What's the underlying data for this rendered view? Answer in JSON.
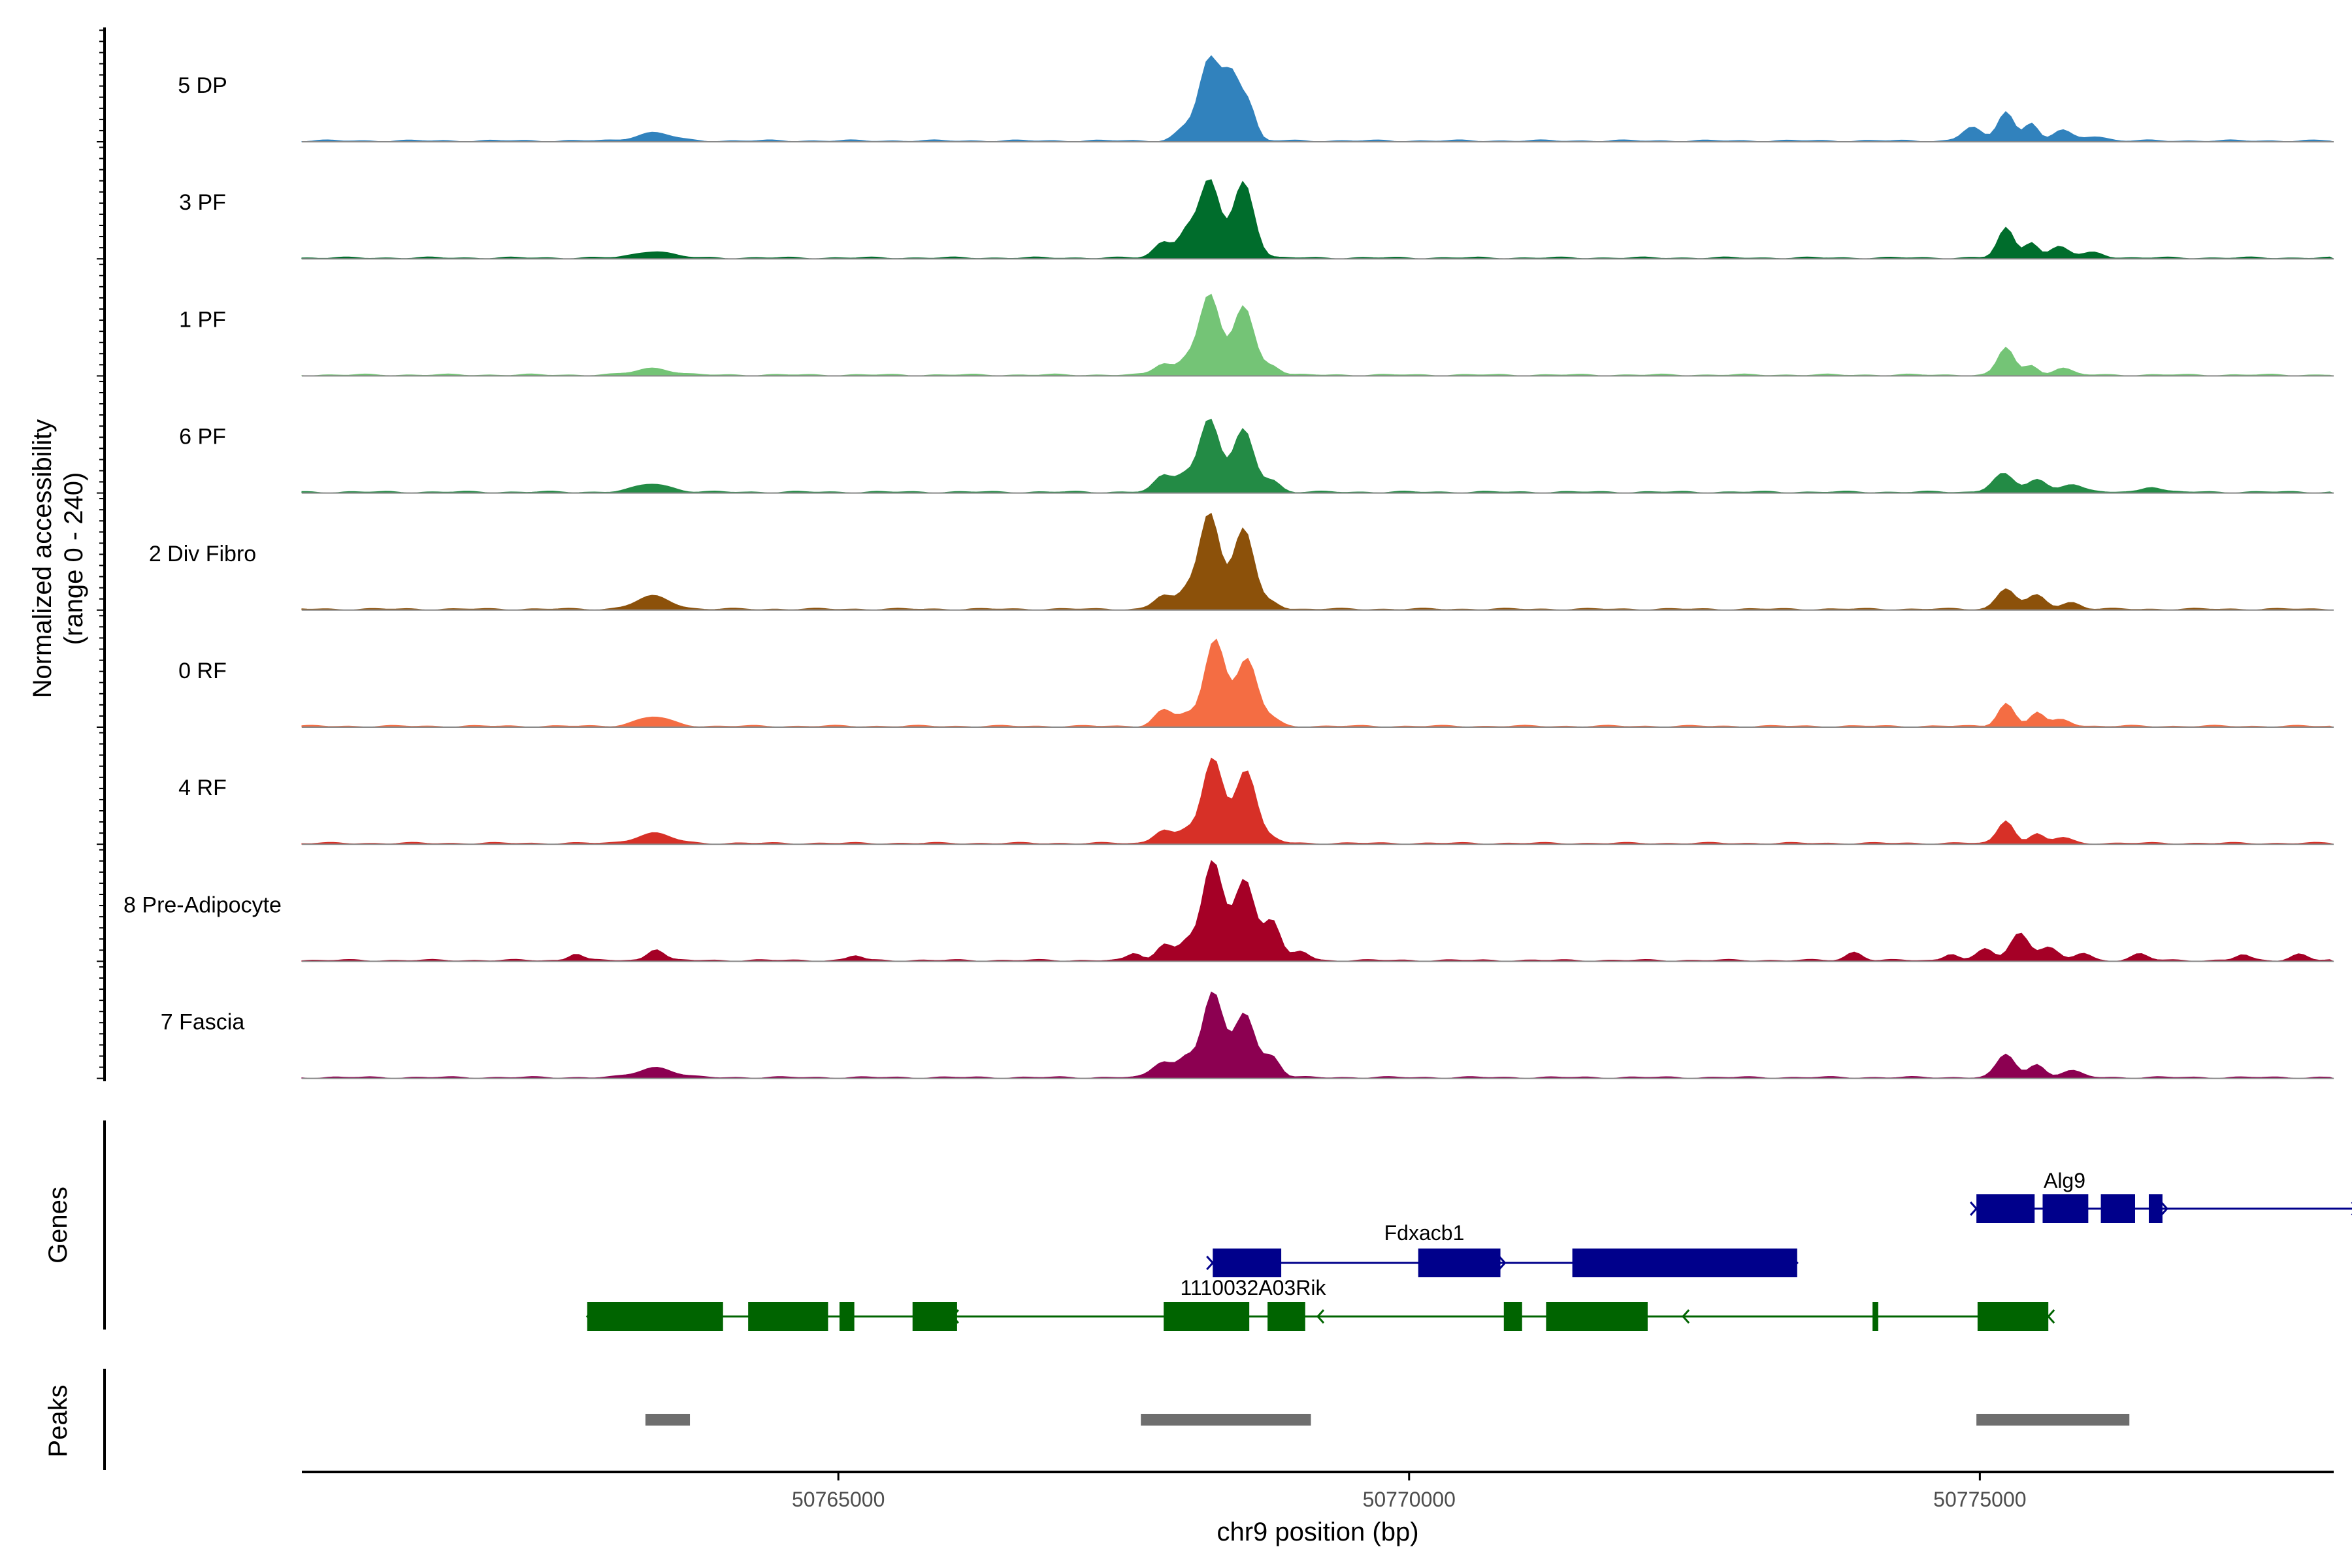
{
  "chart_data": {
    "type": "area",
    "title": "",
    "xlabel": "chr9 position (bp)",
    "ylabel_line1": "Normalized accessibility",
    "ylabel_line2": "(range 0 - 240)",
    "xlim": [
      50760300,
      50778100
    ],
    "xticks": [
      50765000,
      50770000,
      50775000
    ],
    "xtick_labels": [
      "50765000",
      "50770000",
      "50775000"
    ],
    "yrange": [
      0,
      240
    ],
    "tracks": [
      {
        "label": "5 DP",
        "color": "#3182bd",
        "peaks": [
          [
            50763380,
            150,
            18
          ],
          [
            50768030,
            80,
            25
          ],
          [
            50768250,
            90,
            175
          ],
          [
            50768450,
            80,
            140
          ],
          [
            50768600,
            60,
            65
          ],
          [
            50774930,
            80,
            30
          ],
          [
            50775230,
            70,
            65
          ],
          [
            50775450,
            60,
            38
          ],
          [
            50775720,
            80,
            22
          ],
          [
            50776000,
            100,
            10
          ]
        ]
      },
      {
        "label": "3 PF",
        "color": "#006d2c",
        "peaks": [
          [
            50763380,
            150,
            15
          ],
          [
            50767850,
            80,
            35
          ],
          [
            50768050,
            70,
            55
          ],
          [
            50768250,
            90,
            170
          ],
          [
            50768550,
            90,
            165
          ],
          [
            50775230,
            70,
            65
          ],
          [
            50775450,
            60,
            35
          ],
          [
            50775700,
            80,
            25
          ],
          [
            50776000,
            90,
            12
          ]
        ]
      },
      {
        "label": "1 PF",
        "color": "#74c476",
        "peaks": [
          [
            50763380,
            150,
            15
          ],
          [
            50767850,
            80,
            25
          ],
          [
            50768050,
            70,
            30
          ],
          [
            50768250,
            90,
            175
          ],
          [
            50768550,
            90,
            150
          ],
          [
            50768800,
            70,
            20
          ],
          [
            50775230,
            70,
            60
          ],
          [
            50775450,
            60,
            20
          ],
          [
            50775720,
            80,
            15
          ]
        ]
      },
      {
        "label": "6 PF",
        "color": "#238b45",
        "peaks": [
          [
            50763380,
            150,
            18
          ],
          [
            50767850,
            80,
            35
          ],
          [
            50768030,
            70,
            35
          ],
          [
            50768250,
            90,
            160
          ],
          [
            50768550,
            90,
            135
          ],
          [
            50768800,
            70,
            25
          ],
          [
            50775200,
            90,
            40
          ],
          [
            50775500,
            80,
            28
          ],
          [
            50775800,
            90,
            18
          ],
          [
            50776500,
            80,
            12
          ]
        ]
      },
      {
        "label": "2 Div Fibro",
        "color": "#8c510a",
        "peaks": [
          [
            50763380,
            150,
            28
          ],
          [
            50767850,
            80,
            30
          ],
          [
            50768050,
            70,
            35
          ],
          [
            50768250,
            90,
            210
          ],
          [
            50768550,
            90,
            175
          ],
          [
            50768800,
            70,
            15
          ],
          [
            50775230,
            80,
            45
          ],
          [
            50775500,
            80,
            30
          ],
          [
            50775800,
            80,
            15
          ]
        ]
      },
      {
        "label": "0 RF",
        "color": "#f46d43",
        "peaks": [
          [
            50763380,
            150,
            20
          ],
          [
            50767850,
            80,
            35
          ],
          [
            50768050,
            70,
            25
          ],
          [
            50768300,
            90,
            190
          ],
          [
            50768580,
            90,
            145
          ],
          [
            50768800,
            70,
            15
          ],
          [
            50775230,
            70,
            50
          ],
          [
            50775500,
            60,
            30
          ],
          [
            50775720,
            80,
            15
          ]
        ]
      },
      {
        "label": "4 RF",
        "color": "#d73027",
        "peaks": [
          [
            50763380,
            150,
            22
          ],
          [
            50767850,
            80,
            30
          ],
          [
            50768050,
            70,
            25
          ],
          [
            50768280,
            90,
            185
          ],
          [
            50768570,
            90,
            160
          ],
          [
            50768800,
            70,
            10
          ],
          [
            50775230,
            70,
            50
          ],
          [
            50775500,
            60,
            20
          ],
          [
            50775720,
            80,
            12
          ]
        ]
      },
      {
        "label": "8 Pre-Adipocyte",
        "color": "#a50026",
        "peaks": [
          [
            50762700,
            60,
            15
          ],
          [
            50763400,
            70,
            25
          ],
          [
            50765150,
            60,
            10
          ],
          [
            50767600,
            60,
            15
          ],
          [
            50767860,
            70,
            35
          ],
          [
            50768050,
            70,
            40
          ],
          [
            50768280,
            90,
            215
          ],
          [
            50768560,
            90,
            175
          ],
          [
            50768800,
            70,
            85
          ],
          [
            50769050,
            70,
            20
          ],
          [
            50773900,
            70,
            18
          ],
          [
            50774750,
            60,
            15
          ],
          [
            50775050,
            70,
            25
          ],
          [
            50775350,
            80,
            60
          ],
          [
            50775600,
            80,
            28
          ],
          [
            50775900,
            70,
            15
          ],
          [
            50776400,
            70,
            14
          ],
          [
            50777300,
            60,
            12
          ],
          [
            50777800,
            70,
            14
          ]
        ]
      },
      {
        "label": "7 Fascia",
        "color": "#8c0051",
        "peaks": [
          [
            50763400,
            150,
            22
          ],
          [
            50767850,
            90,
            35
          ],
          [
            50768050,
            70,
            40
          ],
          [
            50768280,
            90,
            185
          ],
          [
            50768560,
            90,
            140
          ],
          [
            50768800,
            70,
            45
          ],
          [
            50775230,
            80,
            50
          ],
          [
            50775500,
            70,
            28
          ],
          [
            50775800,
            90,
            14
          ]
        ]
      }
    ],
    "genes_panel_label": "Genes",
    "peaks_panel_label": "Peaks",
    "genes": [
      {
        "name": "Alg9",
        "strand": "+",
        "start": 50774970,
        "end": 50778310,
        "row": 0,
        "color": "#00008b",
        "exons": [
          [
            50774970,
            50775480
          ],
          [
            50775550,
            50775950
          ],
          [
            50776060,
            50776360
          ],
          [
            50776480,
            50776600
          ]
        ]
      },
      {
        "name": "Fdxacb1",
        "strand": "+",
        "start": 50768280,
        "end": 50773400,
        "row": 1,
        "color": "#00008b",
        "exons": [
          [
            50768280,
            50768880
          ],
          [
            50770080,
            50770800
          ],
          [
            50771430,
            50773400
          ]
        ]
      },
      {
        "name": "1110032A03Rik",
        "strand": "-",
        "start": 50762800,
        "end": 50775600,
        "row": 2,
        "color": "#006400",
        "exons": [
          [
            50762800,
            50763990
          ],
          [
            50764210,
            50764910
          ],
          [
            50765010,
            50765140
          ],
          [
            50765650,
            50766040
          ],
          [
            50767850,
            50768600
          ],
          [
            50768760,
            50769090
          ],
          [
            50770830,
            50770990
          ],
          [
            50771200,
            50772090
          ],
          [
            50774060,
            50774110
          ],
          [
            50774980,
            50775600
          ]
        ]
      }
    ],
    "peak_regions": [
      [
        50763310,
        50763700
      ],
      [
        50767650,
        50769140
      ],
      [
        50774970,
        50776310
      ]
    ]
  }
}
